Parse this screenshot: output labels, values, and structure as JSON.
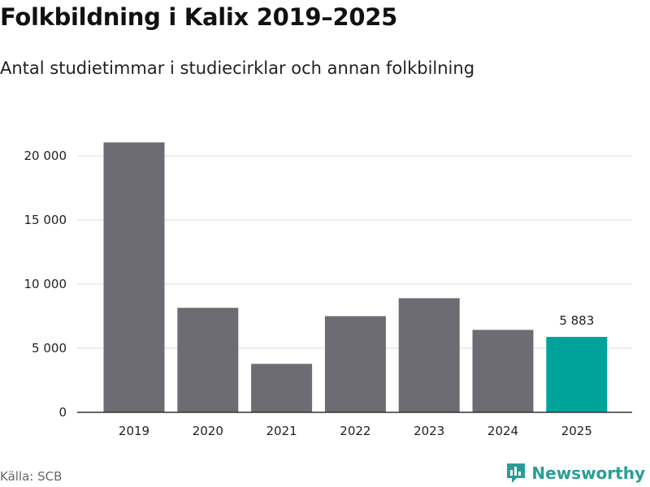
{
  "header": {
    "title": "Folkbildning i Kalix 2019–2025",
    "subtitle": "Antal studietimmar i studiecirklar och annan folkbilning"
  },
  "footer": {
    "source": "Källa: SCB",
    "brand": "Newsworthy"
  },
  "colors": {
    "bar": "#6d6c72",
    "highlight": "#00a39a",
    "grid": "#dddddd",
    "axis": "#333333",
    "brand": "#2a9d96"
  },
  "icons": {
    "brand_logo": "newsworthy-logo-icon"
  },
  "chart_data": {
    "type": "bar",
    "categories": [
      "2019",
      "2020",
      "2021",
      "2022",
      "2023",
      "2024",
      "2025"
    ],
    "values": [
      21050,
      8150,
      3780,
      7500,
      8900,
      6430,
      5883
    ],
    "highlight_index": 6,
    "data_labels": [
      {
        "index": 6,
        "text": "5 883"
      }
    ],
    "ylim": [
      0,
      20000
    ],
    "yticks": [
      0,
      5000,
      10000,
      15000,
      20000
    ],
    "ytick_labels": [
      "0",
      "5 000",
      "10 000",
      "15 000",
      "20 000"
    ],
    "grid": true,
    "legend": "none"
  }
}
